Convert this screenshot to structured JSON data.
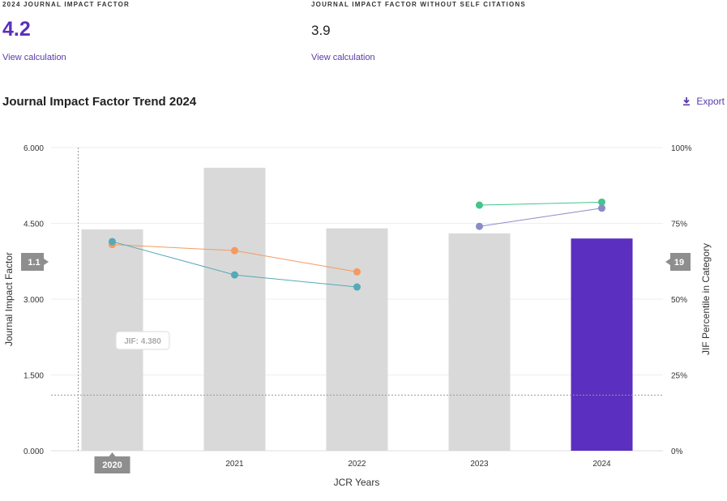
{
  "metrics": {
    "jif_label": "2024 JOURNAL IMPACT FACTOR",
    "jif_value": "4.2",
    "jif_link": "View calculation",
    "jif_noself_label": "JOURNAL IMPACT FACTOR WITHOUT SELF CITATIONS",
    "jif_noself_value": "3.9",
    "jif_noself_link": "View calculation"
  },
  "export_label": "Export",
  "icons": {
    "export": "download-icon"
  },
  "colors": {
    "bar": "#d9d9d9",
    "bar_highlight": "#5b2fbf",
    "orange": "#f59a5f",
    "teal": "#55a9b8",
    "green": "#45c48c",
    "violet": "#8a8cc8",
    "accent": "#5b3aa8"
  },
  "chart_data": {
    "type": "bar",
    "title": "Journal Impact Factor Trend 2024",
    "xlabel": "JCR Years",
    "ylabel": "Journal Impact Factor",
    "y2label": "JIF Percentile in Category",
    "categories": [
      "2020",
      "2021",
      "2022",
      "2023",
      "2024"
    ],
    "values": [
      4.38,
      5.6,
      4.4,
      4.3,
      4.2
    ],
    "highlight_index": 4,
    "ylim": [
      0,
      6
    ],
    "yticks": [
      "0.000",
      "1.500",
      "3.000",
      "4.500",
      "6.000"
    ],
    "y2lim": [
      0,
      100
    ],
    "y2ticks": [
      "0%",
      "25%",
      "50%",
      "75%",
      "100%"
    ],
    "series_right": [
      {
        "values": [
          68,
          66,
          59,
          null,
          null
        ],
        "color": "#f59a5f"
      },
      {
        "values": [
          69,
          58,
          54,
          null,
          null
        ],
        "color": "#55a9b8"
      },
      {
        "values": [
          null,
          null,
          null,
          81,
          82
        ],
        "color": "#45c48c"
      },
      {
        "values": [
          null,
          null,
          null,
          74,
          80
        ],
        "color": "#8a8cc8"
      }
    ],
    "crosshair": {
      "x_label": "2020",
      "y_left_label": "1.1",
      "y_right_label": "19",
      "y_value": 1.1
    },
    "tooltip": "JIF: 4.380",
    "grid": true
  }
}
